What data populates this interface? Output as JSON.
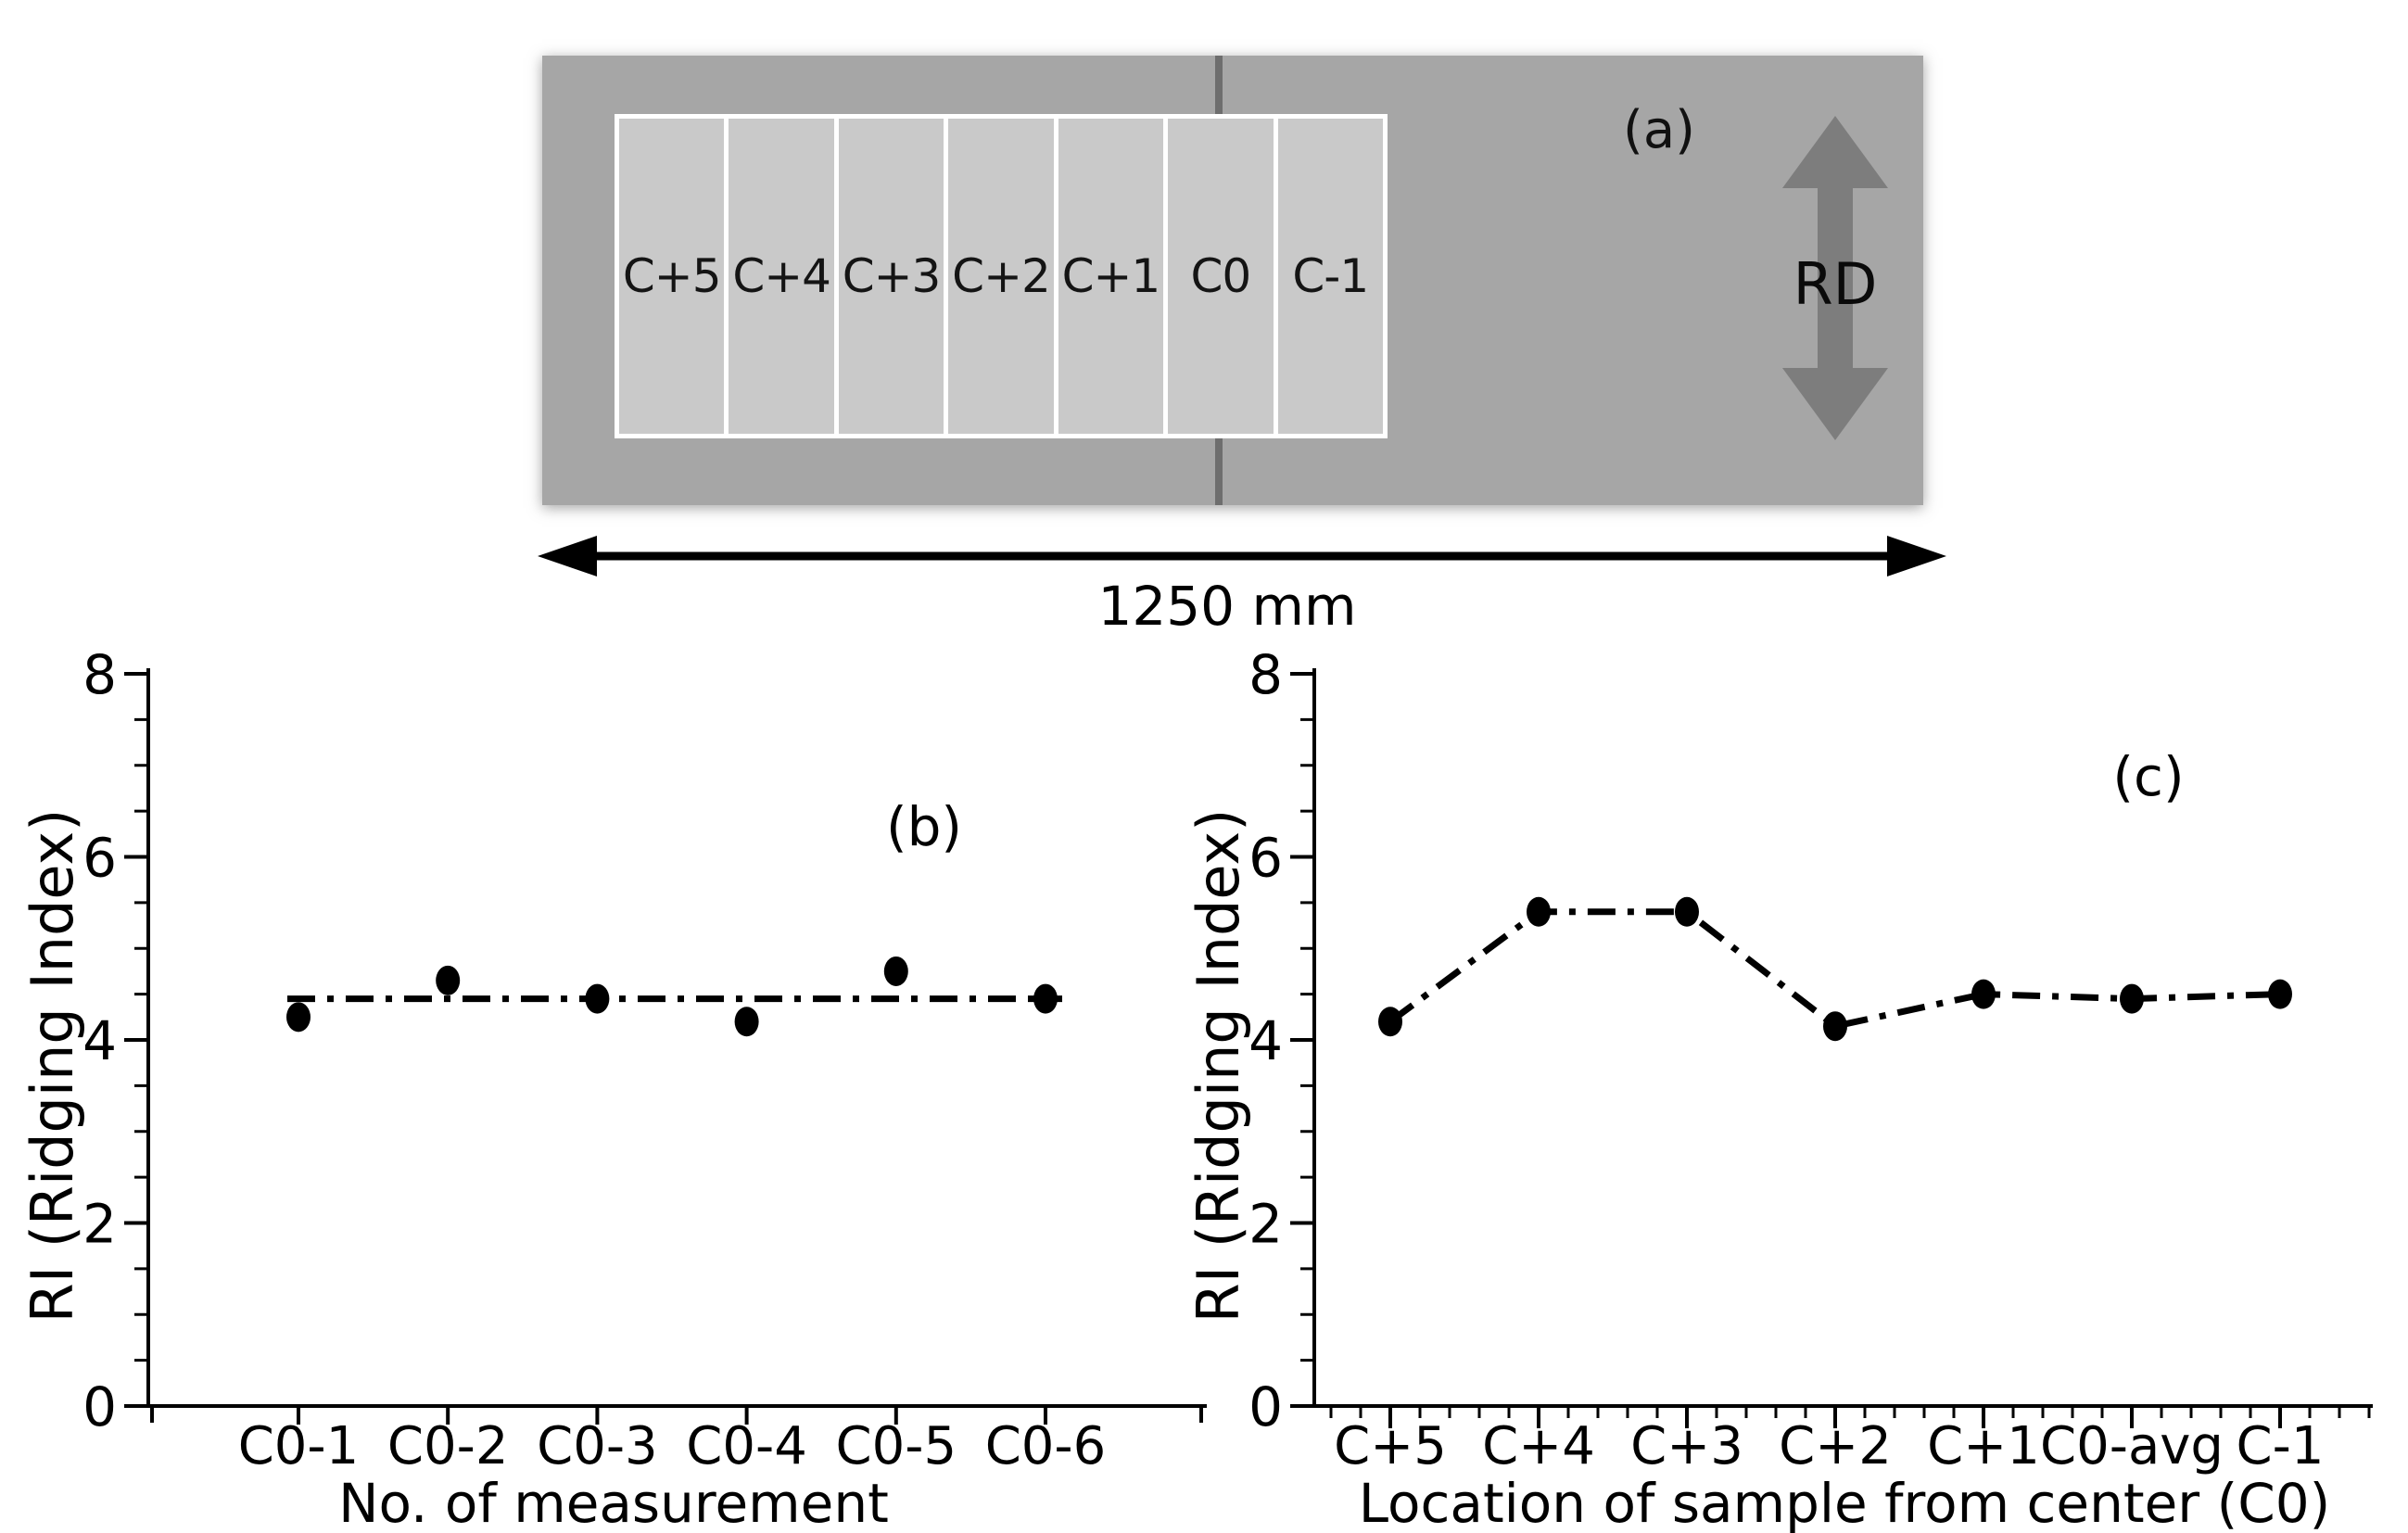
{
  "figure": {
    "background": "#ffffff"
  },
  "diagram": {
    "panel_label": "(a)",
    "strip_labels": [
      "C+5",
      "C+4",
      "C+3",
      "C+2",
      "C+1",
      "C0",
      "C-1"
    ],
    "rolling_direction_label": "RD",
    "width_dimension_label": "1250 mm",
    "colors": {
      "sheet": "#a6a6a6",
      "strip": "#c9c9c9",
      "strip_border": "#ffffff",
      "center_line": "#6e6e6e",
      "rd_arrow": "#7d7d7d",
      "text": "#000000"
    }
  },
  "chart_data": [
    {
      "id": "b",
      "type": "scatter",
      "panel_label": "(b)",
      "xlabel": "No. of measurement",
      "ylabel": "RI (Ridging Index)",
      "categories": [
        "C0-1",
        "C0-2",
        "C0-3",
        "C0-4",
        "C0-5",
        "C0-6"
      ],
      "values": [
        4.25,
        4.65,
        4.45,
        4.2,
        4.75,
        4.45
      ],
      "mean_line_value": 4.45,
      "ylim": [
        0,
        8
      ],
      "yticks": [
        0,
        2,
        4,
        6,
        8
      ],
      "y_minor_step": 0.5,
      "line_style": "dash-dot",
      "marker": "filled-circle",
      "color": "#000000",
      "grid": false
    },
    {
      "id": "c",
      "type": "line",
      "panel_label": "(c)",
      "xlabel": "Location of sample from center (C0)",
      "ylabel": "RI (Ridging Index)",
      "categories": [
        "C+5",
        "C+4",
        "C+3",
        "C+2",
        "C+1",
        "C0-avg",
        "C-1"
      ],
      "values": [
        4.2,
        5.4,
        5.4,
        4.15,
        4.5,
        4.45,
        4.5
      ],
      "ylim": [
        0,
        8
      ],
      "yticks": [
        0,
        2,
        4,
        6,
        8
      ],
      "y_minor_step": 0.5,
      "x_minor_per_interval": 5,
      "line_style": "dash-dot",
      "marker": "filled-circle",
      "color": "#000000",
      "grid": false
    }
  ]
}
